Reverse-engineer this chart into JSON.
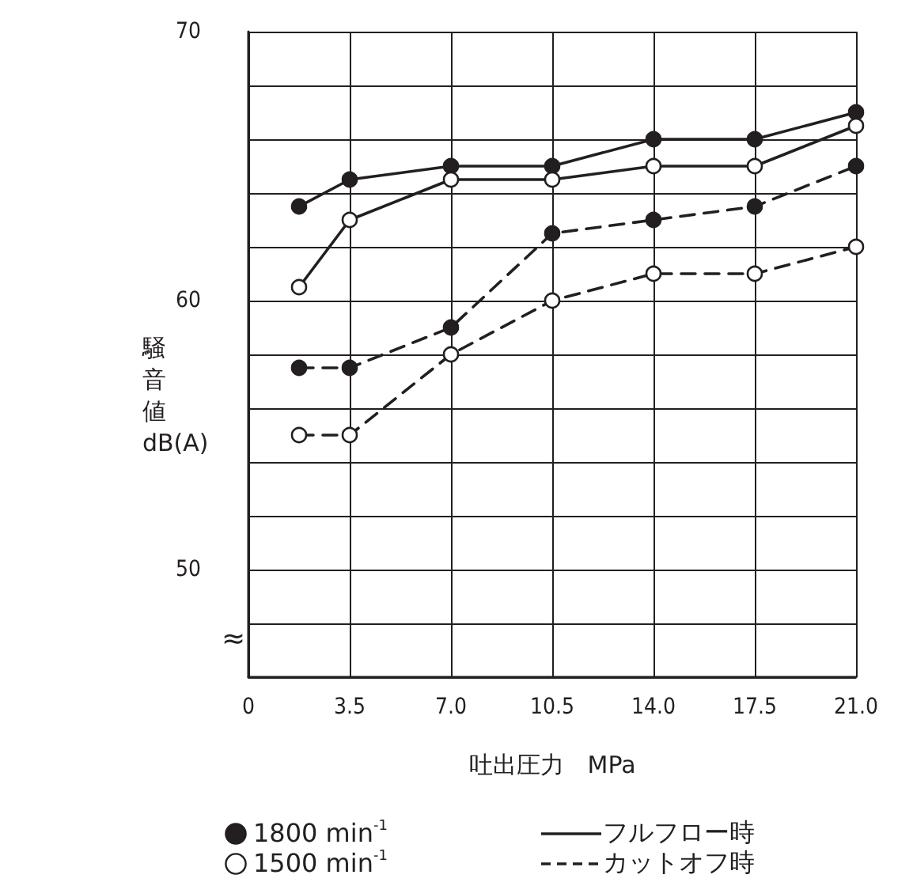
{
  "chart_data": {
    "type": "line",
    "xlabel": "吐出圧力　MPa",
    "ylabel": "騒音値 dB(A)",
    "x": [
      1.75,
      3.5,
      7,
      10.5,
      14,
      17.5,
      21
    ],
    "series": [
      {
        "color": "#231f20",
        "line_style": "solid",
        "values": [
          63.5,
          64.5,
          65,
          65,
          66,
          66,
          67
        ]
      },
      {
        "color": "#231f20",
        "line_style": "solid",
        "values": [
          60.5,
          63,
          64.5,
          64.5,
          65,
          65,
          66.5
        ]
      },
      {
        "color": "#231f20",
        "line_style": "dashed",
        "values": [
          57.5,
          57.5,
          59,
          62.5,
          63,
          63.5,
          65
        ]
      },
      {
        "color": "#231f20",
        "line_style": "dashed",
        "values": [
          55,
          55,
          58,
          60,
          61,
          61,
          62
        ]
      }
    ],
    "marker": "circle",
    "xlim": [
      0,
      21
    ],
    "xticks": [
      0,
      {
        "value": 3.5,
        "label": "3.5"
      },
      {
        "value": 7,
        "label": "7.0"
      },
      {
        "value": 10.5,
        "label": "10.5"
      },
      {
        "value": 14,
        "label": "14.0"
      },
      {
        "value": 17.5,
        "label": "17.5"
      },
      {
        "value": 21,
        "label": "21.0"
      }
    ],
    "ylim": [
      46,
      70
    ],
    "yticks": [
      {
        "value": 46,
        "label": null
      },
      {
        "value": 48,
        "label": null
      },
      50,
      {
        "value": 52,
        "label": null
      },
      {
        "value": 54,
        "label": null
      },
      {
        "value": 56,
        "label": null
      },
      {
        "value": 58,
        "label": null
      },
      60,
      {
        "value": 62,
        "label": null
      },
      {
        "value": 64,
        "label": null
      },
      {
        "value": 66,
        "label": null
      },
      {
        "value": 68,
        "label": null
      },
      70
    ],
    "grid": true,
    "annotations": [
      "≈",
      "1800 min$^{-1}$",
      "1500 min$^{-1}$",
      "フルフロー時",
      "カットオフ時"
    ]
  }
}
